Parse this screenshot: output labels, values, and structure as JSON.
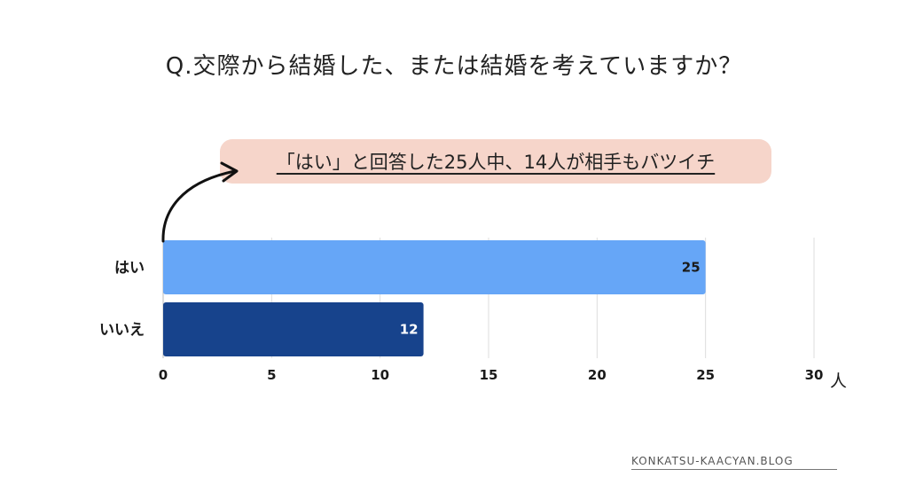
{
  "title": "Q.交際から結婚した、または結婚を考えていますか？",
  "callout": {
    "text": "「はい」と回答した25人中、14人が相手もバツイチ",
    "background": "#f6d5ca"
  },
  "watermark": "KONKATSU-KAACYAN.BLOG",
  "colors": {
    "bar_yes": "#66a6f7",
    "bar_no": "#17438c",
    "grid": "#dddddd",
    "arrow": "#111111"
  },
  "chart_data": {
    "type": "bar",
    "orientation": "horizontal",
    "categories": [
      "はい",
      "いいえ"
    ],
    "values": [
      25,
      12
    ],
    "title": "Q.交際から結婚した、または結婚を考えていますか？",
    "xlabel": "人",
    "ylabel": "",
    "xlim": [
      0,
      30
    ],
    "xticks": [
      "0",
      "5",
      "10",
      "15",
      "20",
      "25",
      "30"
    ],
    "data_labels": [
      "25",
      "12"
    ],
    "grid": true
  }
}
